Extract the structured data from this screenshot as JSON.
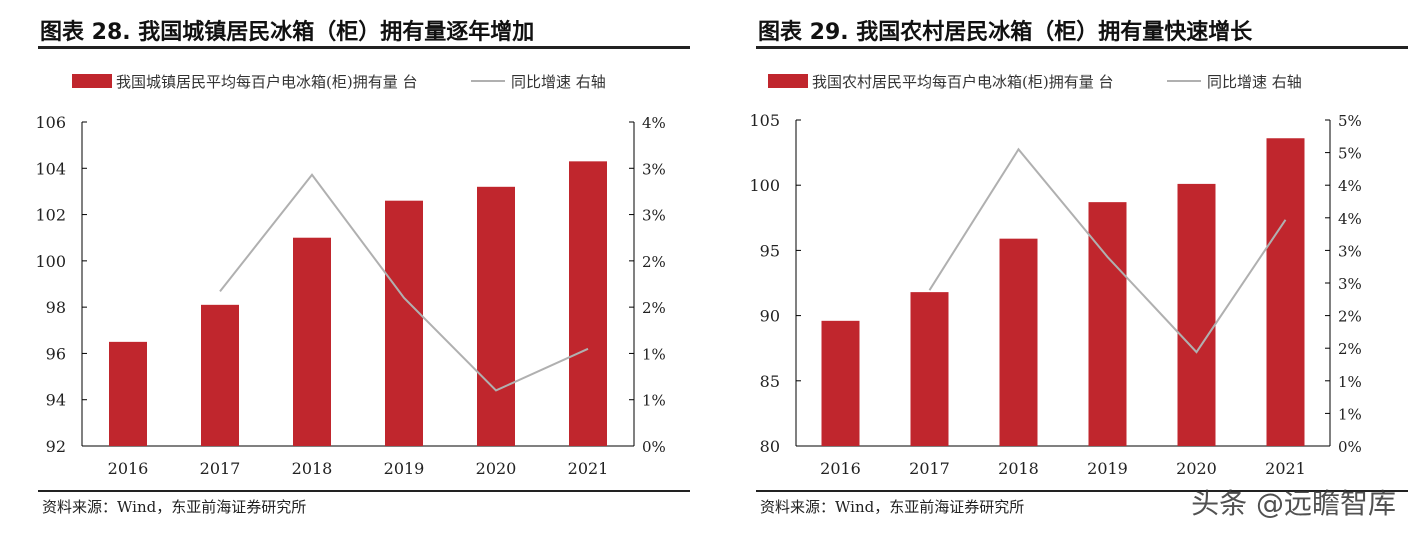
{
  "chart_data": [
    {
      "type": "bar+line",
      "title": "图表 28. 我国城镇居民冰箱（柜）拥有量逐年增加",
      "categories": [
        "2016",
        "2017",
        "2018",
        "2019",
        "2020",
        "2021"
      ],
      "series": [
        {
          "name": "我国城镇居民平均每百户电冰箱(柜)拥有量 台",
          "type": "bar",
          "axis": "left",
          "color": "#c0262d",
          "values": [
            96.5,
            98.1,
            101.0,
            102.6,
            103.2,
            104.3
          ]
        },
        {
          "name": "同比增速 右轴",
          "type": "line",
          "axis": "right",
          "color": "#b0b0b0",
          "values": [
            null,
            1.67,
            2.93,
            1.6,
            0.6,
            1.05
          ]
        }
      ],
      "ylim": [
        92,
        106
      ],
      "yticks": [
        "92",
        "94",
        "96",
        "98",
        "100",
        "102",
        "104",
        "106"
      ],
      "y2lim": [
        0,
        3.5
      ],
      "y2ticks": [
        "0%",
        "1%",
        "1%",
        "2%",
        "2%",
        "3%",
        "3%",
        "4%"
      ],
      "legend": "top",
      "grid": false,
      "source": "资料来源：Wind，东亚前海证券研究所"
    },
    {
      "type": "bar+line",
      "title": "图表 29. 我国农村居民冰箱（柜）拥有量快速增长",
      "categories": [
        "2016",
        "2017",
        "2018",
        "2019",
        "2020",
        "2021"
      ],
      "series": [
        {
          "name": "我国农村居民平均每百户电冰箱(柜)拥有量 台",
          "type": "bar",
          "axis": "left",
          "color": "#c0262d",
          "values": [
            89.6,
            91.8,
            95.9,
            98.7,
            100.1,
            103.6
          ]
        },
        {
          "name": "同比增速 右轴",
          "type": "line",
          "axis": "right",
          "color": "#b0b0b0",
          "values": [
            null,
            2.39,
            4.55,
            2.9,
            1.44,
            3.47
          ]
        }
      ],
      "ylim": [
        80,
        105
      ],
      "yticks": [
        "80",
        "85",
        "90",
        "95",
        "100",
        "105"
      ],
      "y2lim": [
        0,
        5
      ],
      "y2ticks": [
        "0%",
        "1%",
        "1%",
        "2%",
        "2%",
        "3%",
        "3%",
        "4%",
        "4%",
        "5%",
        "5%"
      ],
      "legend": "top",
      "grid": false,
      "source": "资料来源：Wind，东亚前海证券研究所"
    }
  ],
  "watermark": "头条 @远瞻智库"
}
